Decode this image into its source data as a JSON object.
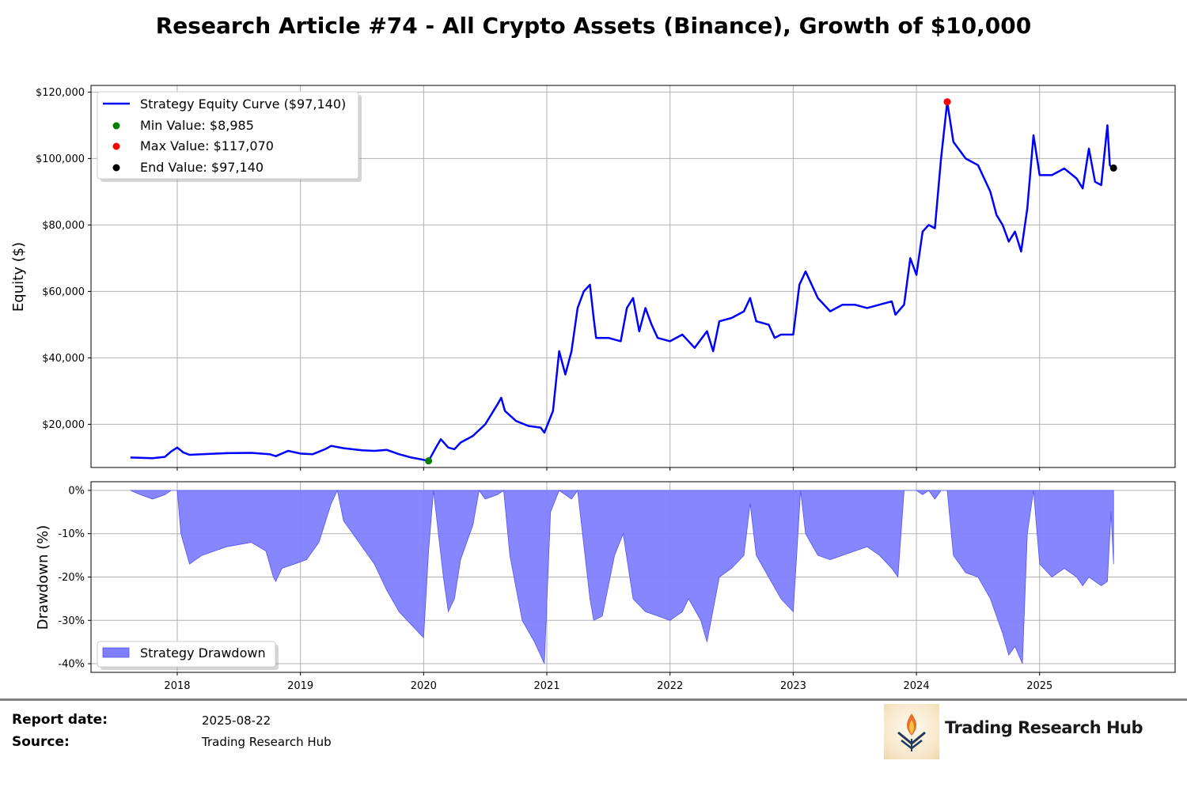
{
  "title": "Research Article #74 - All Crypto Assets (Binance), Growth of $10,000",
  "colors": {
    "strategy": "#0000ff",
    "min": "#008000",
    "max": "#ff0000",
    "end": "#000000",
    "drawdown_fill": "#7f7fff",
    "grid": "#b0b0b0"
  },
  "chart_data": [
    {
      "type": "line",
      "ylabel": "Equity ($)",
      "ylim": [
        7000,
        122000
      ],
      "yticks": [
        "$20,000",
        "$40,000",
        "$60,000",
        "$80,000",
        "$100,000",
        "$120,000"
      ],
      "ytick_values": [
        20000,
        40000,
        60000,
        80000,
        100000,
        120000
      ],
      "xlim": [
        2017.3,
        2026.1
      ],
      "xticks": [
        "2018",
        "2019",
        "2020",
        "2021",
        "2022",
        "2023",
        "2024",
        "2025"
      ],
      "xtick_values": [
        2018,
        2019,
        2020,
        2021,
        2022,
        2023,
        2024,
        2025
      ],
      "grid": true,
      "legend_position": "top-left",
      "series": [
        {
          "name": "Strategy Equity Curve ($97,140)",
          "x": [
            2017.62,
            2017.7,
            2017.8,
            2017.9,
            2017.95,
            2018.0,
            2018.05,
            2018.1,
            2018.2,
            2018.4,
            2018.6,
            2018.75,
            2018.8,
            2018.9,
            2019.0,
            2019.1,
            2019.2,
            2019.25,
            2019.35,
            2019.5,
            2019.6,
            2019.7,
            2019.8,
            2019.9,
            2020.0,
            2020.04,
            2020.1,
            2020.14,
            2020.2,
            2020.25,
            2020.3,
            2020.4,
            2020.5,
            2020.6,
            2020.63,
            2020.66,
            2020.75,
            2020.85,
            2020.95,
            2020.98,
            2021.05,
            2021.1,
            2021.15,
            2021.2,
            2021.25,
            2021.3,
            2021.35,
            2021.38,
            2021.4,
            2021.5,
            2021.6,
            2021.65,
            2021.7,
            2021.75,
            2021.8,
            2021.85,
            2021.9,
            2022.0,
            2022.1,
            2022.2,
            2022.3,
            2022.35,
            2022.4,
            2022.5,
            2022.6,
            2022.65,
            2022.7,
            2022.8,
            2022.85,
            2022.9,
            2023.0,
            2023.05,
            2023.1,
            2023.2,
            2023.25,
            2023.3,
            2023.4,
            2023.5,
            2023.6,
            2023.7,
            2023.8,
            2023.83,
            2023.9,
            2023.95,
            2024.0,
            2024.05,
            2024.1,
            2024.15,
            2024.2,
            2024.25,
            2024.3,
            2024.4,
            2024.5,
            2024.6,
            2024.65,
            2024.7,
            2024.75,
            2024.8,
            2024.85,
            2024.9,
            2024.95,
            2025.0,
            2025.1,
            2025.2,
            2025.3,
            2025.35,
            2025.4,
            2025.45,
            2025.5,
            2025.55,
            2025.57,
            2025.59
          ],
          "y": [
            10000,
            9900,
            9800,
            10200,
            11800,
            13000,
            11500,
            10800,
            11000,
            11300,
            11400,
            11000,
            10400,
            12000,
            11200,
            11000,
            12500,
            13500,
            12800,
            12200,
            12000,
            12300,
            11000,
            10000,
            9300,
            8985,
            13000,
            15500,
            13000,
            12500,
            14500,
            16500,
            20000,
            26000,
            28000,
            24000,
            21000,
            19500,
            19000,
            17500,
            24000,
            42000,
            35000,
            42000,
            55000,
            60000,
            62000,
            52000,
            46000,
            46000,
            45000,
            55000,
            58000,
            48000,
            55000,
            50000,
            46000,
            45000,
            47000,
            43000,
            48000,
            42000,
            51000,
            52000,
            54000,
            58000,
            51000,
            50000,
            46000,
            47000,
            47000,
            62000,
            66000,
            58000,
            56000,
            54000,
            56000,
            56000,
            55000,
            56000,
            57000,
            53000,
            56000,
            70000,
            65000,
            78000,
            80000,
            79000,
            100000,
            117070,
            105000,
            100000,
            98000,
            90000,
            83000,
            80000,
            75000,
            78000,
            72000,
            85000,
            107000,
            95000,
            95000,
            97000,
            94000,
            91000,
            103000,
            93000,
            92000,
            110000,
            98000,
            97140
          ]
        }
      ],
      "markers": [
        {
          "name": "Min Value: $8,985",
          "x": 2020.04,
          "y": 8985
        },
        {
          "name": "Max Value: $117,070",
          "x": 2024.25,
          "y": 117070
        },
        {
          "name": "End Value: $97,140",
          "x": 2025.6,
          "y": 97140
        }
      ]
    },
    {
      "type": "area",
      "ylabel": "Drawdown (%)",
      "ylim": [
        -42,
        2
      ],
      "yticks": [
        "0%",
        "-10%",
        "-20%",
        "-30%",
        "-40%"
      ],
      "ytick_values": [
        0,
        -10,
        -20,
        -30,
        -40
      ],
      "xlim": [
        2017.3,
        2026.1
      ],
      "xticks": [
        "2018",
        "2019",
        "2020",
        "2021",
        "2022",
        "2023",
        "2024",
        "2025"
      ],
      "xtick_values": [
        2018,
        2019,
        2020,
        2021,
        2022,
        2023,
        2024,
        2025
      ],
      "grid": true,
      "legend_position": "bottom-left",
      "series": [
        {
          "name": "Strategy Drawdown",
          "x": [
            2017.62,
            2017.7,
            2017.8,
            2017.9,
            2017.95,
            2018.0,
            2018.03,
            2018.1,
            2018.2,
            2018.4,
            2018.6,
            2018.72,
            2018.78,
            2018.8,
            2018.85,
            2018.95,
            2019.05,
            2019.15,
            2019.25,
            2019.3,
            2019.35,
            2019.5,
            2019.6,
            2019.7,
            2019.8,
            2019.9,
            2020.0,
            2020.04,
            2020.08,
            2020.12,
            2020.16,
            2020.2,
            2020.25,
            2020.3,
            2020.4,
            2020.45,
            2020.5,
            2020.6,
            2020.65,
            2020.7,
            2020.8,
            2020.9,
            2020.98,
            2021.03,
            2021.1,
            2021.2,
            2021.25,
            2021.35,
            2021.38,
            2021.45,
            2021.55,
            2021.62,
            2021.7,
            2021.8,
            2021.9,
            2022.0,
            2022.1,
            2022.15,
            2022.25,
            2022.3,
            2022.4,
            2022.5,
            2022.6,
            2022.65,
            2022.7,
            2022.8,
            2022.9,
            2023.0,
            2023.06,
            2023.1,
            2023.2,
            2023.3,
            2023.4,
            2023.5,
            2023.6,
            2023.7,
            2023.8,
            2023.85,
            2023.9,
            2024.0,
            2024.05,
            2024.1,
            2024.15,
            2024.2,
            2024.25,
            2024.3,
            2024.4,
            2024.5,
            2024.6,
            2024.7,
            2024.75,
            2024.8,
            2024.86,
            2024.9,
            2024.95,
            2025.0,
            2025.1,
            2025.2,
            2025.3,
            2025.35,
            2025.4,
            2025.5,
            2025.55,
            2025.58,
            2025.6
          ],
          "y": [
            0,
            -1,
            -2,
            -1,
            0,
            0,
            -10,
            -17,
            -15,
            -13,
            -12,
            -14,
            -20,
            -21,
            -18,
            -17,
            -16,
            -12,
            -3,
            0,
            -7,
            -13,
            -17,
            -23,
            -28,
            -31,
            -34,
            -14,
            0,
            -10,
            -20,
            -28,
            -25,
            -16,
            -8,
            0,
            -2,
            -1,
            0,
            -15,
            -30,
            -35,
            -40,
            -5,
            0,
            -2,
            0,
            -25,
            -30,
            -29,
            -15,
            -10,
            -25,
            -28,
            -29,
            -30,
            -28,
            -25,
            -30,
            -35,
            -20,
            -18,
            -15,
            -3,
            -15,
            -20,
            -25,
            -28,
            0,
            -10,
            -15,
            -16,
            -15,
            -14,
            -13,
            -15,
            -18,
            -20,
            0,
            0,
            -1,
            0,
            -2,
            0,
            0,
            -15,
            -19,
            -20,
            -25,
            -33,
            -38,
            -36,
            -40,
            -10,
            0,
            -17,
            -20,
            -18,
            -20,
            -22,
            -20,
            -22,
            -21,
            -5,
            -17
          ]
        }
      ]
    }
  ],
  "footer": {
    "report_date_label": "Report date:",
    "report_date_value": "2025-08-22",
    "source_label": "Source:",
    "source_value": "Trading Research Hub",
    "logo_text": "Trading Research Hub"
  }
}
